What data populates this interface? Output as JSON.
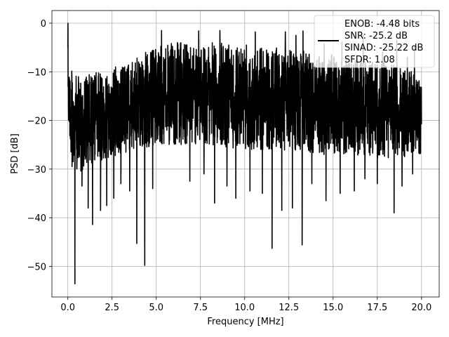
{
  "chart_data": {
    "type": "line",
    "xlabel": "Frequency [MHz]",
    "ylabel": "PSD [dB]",
    "xlim": [
      -0.9,
      21.0
    ],
    "ylim": [
      -56.3,
      2.6
    ],
    "x_ticks": [
      0.0,
      2.5,
      5.0,
      7.5,
      10.0,
      12.5,
      15.0,
      17.5,
      20.0
    ],
    "x_tick_labels": [
      "0.0",
      "2.5",
      "5.0",
      "7.5",
      "10.0",
      "12.5",
      "15.0",
      "17.5",
      "20.0"
    ],
    "y_ticks": [
      0,
      -10,
      -20,
      -30,
      -40,
      -50
    ],
    "y_tick_labels": [
      "0",
      "−10",
      "−20",
      "−30",
      "−40",
      "−50"
    ],
    "grid": true,
    "legend_position": "top-right",
    "series_color": "#000000",
    "series": [
      {
        "legend_lines": [
          "ENOB: -4.48 bits",
          "SNR: -25.2 dB",
          "SINAD: -25.22 dB",
          "SFDR: 1.08"
        ],
        "x_range": [
          0.0,
          20.0
        ],
        "floor_range": [
          -35,
          -10
        ],
        "upper_envelope": [
          [
            0.0,
            0
          ],
          [
            0.1,
            -9
          ],
          [
            0.5,
            -11
          ],
          [
            2.0,
            -10
          ],
          [
            3.0,
            -9
          ],
          [
            4.0,
            -7
          ],
          [
            5.0,
            -5
          ],
          [
            6.0,
            -4
          ],
          [
            8.0,
            -4
          ],
          [
            10.0,
            -4
          ],
          [
            12.0,
            -5
          ],
          [
            14.0,
            -6
          ],
          [
            16.0,
            -7
          ],
          [
            18.0,
            -8
          ],
          [
            19.5,
            -10
          ],
          [
            20.0,
            -11
          ]
        ],
        "lower_envelope": [
          [
            0.0,
            -20
          ],
          [
            0.3,
            -32
          ],
          [
            1.0,
            -30
          ],
          [
            2.0,
            -28
          ],
          [
            3.0,
            -27
          ],
          [
            5.0,
            -25
          ],
          [
            8.0,
            -25
          ],
          [
            10.0,
            -26
          ],
          [
            12.0,
            -26
          ],
          [
            14.0,
            -27
          ],
          [
            16.0,
            -27
          ],
          [
            18.0,
            -28
          ],
          [
            20.0,
            -27
          ]
        ],
        "deep_notches": [
          [
            0.4,
            -53.6
          ],
          [
            0.8,
            -33.5
          ],
          [
            1.15,
            -38.0
          ],
          [
            1.4,
            -41.4
          ],
          [
            1.85,
            -38.5
          ],
          [
            2.2,
            -37.5
          ],
          [
            2.6,
            -36.0
          ],
          [
            3.0,
            -33.0
          ],
          [
            3.5,
            -34.5
          ],
          [
            3.9,
            -45.3
          ],
          [
            4.35,
            -49.8
          ],
          [
            4.8,
            -34.0
          ],
          [
            5.3,
            -35.0
          ],
          [
            6.2,
            -33.0
          ],
          [
            6.9,
            -32.5
          ],
          [
            7.7,
            -31.0
          ],
          [
            8.3,
            -37.0
          ],
          [
            9.0,
            -33.5
          ],
          [
            9.5,
            -36.0
          ],
          [
            10.3,
            -34.5
          ],
          [
            11.0,
            -35.0
          ],
          [
            11.55,
            -46.3
          ],
          [
            12.1,
            -38.5
          ],
          [
            12.7,
            -38.0
          ],
          [
            13.25,
            -45.6
          ],
          [
            13.8,
            -33.0
          ],
          [
            14.6,
            -36.5
          ],
          [
            15.4,
            -35.0
          ],
          [
            16.2,
            -34.5
          ],
          [
            16.8,
            -32.0
          ],
          [
            17.5,
            -33.0
          ],
          [
            18.45,
            -39.0
          ],
          [
            18.9,
            -33.5
          ],
          [
            19.5,
            -31.0
          ]
        ],
        "high_spikes": [
          [
            1.6,
            -10.2
          ],
          [
            2.7,
            -9.0
          ],
          [
            4.4,
            -6.0
          ],
          [
            5.3,
            -1.5
          ],
          [
            6.2,
            -4.0
          ],
          [
            7.4,
            -1.6
          ],
          [
            8.6,
            -1.5
          ],
          [
            9.1,
            -4.5
          ],
          [
            10.1,
            -4.5
          ],
          [
            10.6,
            -1.8
          ],
          [
            12.3,
            -1.8
          ],
          [
            12.9,
            -2.5
          ],
          [
            13.3,
            -1.6
          ],
          [
            14.5,
            -4.3
          ],
          [
            15.5,
            -3.9
          ],
          [
            16.7,
            -2.5
          ],
          [
            17.8,
            -6.0
          ],
          [
            18.6,
            -3.5
          ],
          [
            19.2,
            -7.0
          ],
          [
            19.6,
            -4.5
          ]
        ]
      }
    ]
  }
}
